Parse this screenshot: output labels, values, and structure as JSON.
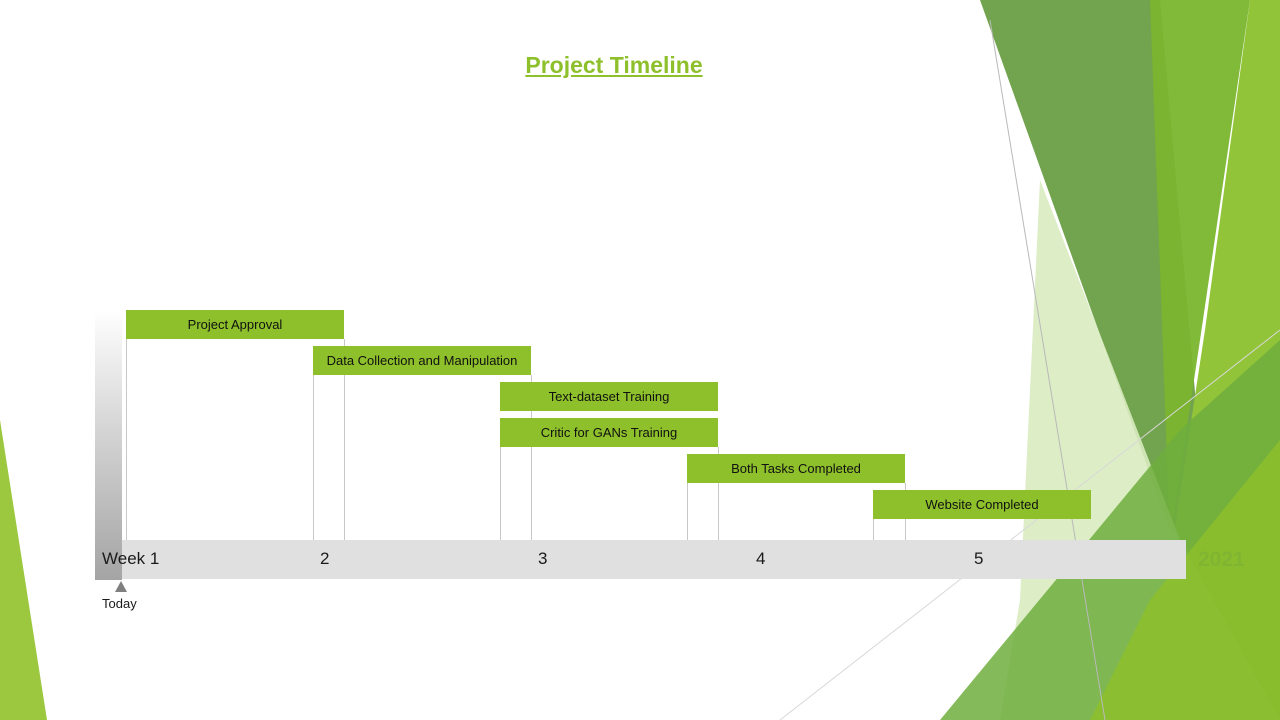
{
  "title": "Project Timeline",
  "timeline": {
    "weeks": [
      "Week 1",
      "2",
      "3",
      "4",
      "5"
    ],
    "year": "2021",
    "today_label": "Today",
    "tasks": [
      {
        "label": "Project Approval"
      },
      {
        "label": "Data Collection and Manipulation"
      },
      {
        "label": "Text-dataset Training"
      },
      {
        "label": "Critic for GANs Training"
      },
      {
        "label": "Both Tasks Completed"
      },
      {
        "label": "Website Completed"
      }
    ]
  },
  "colors": {
    "accent": "#8dc02b",
    "year": "#7fb531",
    "bar": "#e0e0e0",
    "decor_dark": "#5f9a3a",
    "decor_light": "#d9ebc0"
  }
}
